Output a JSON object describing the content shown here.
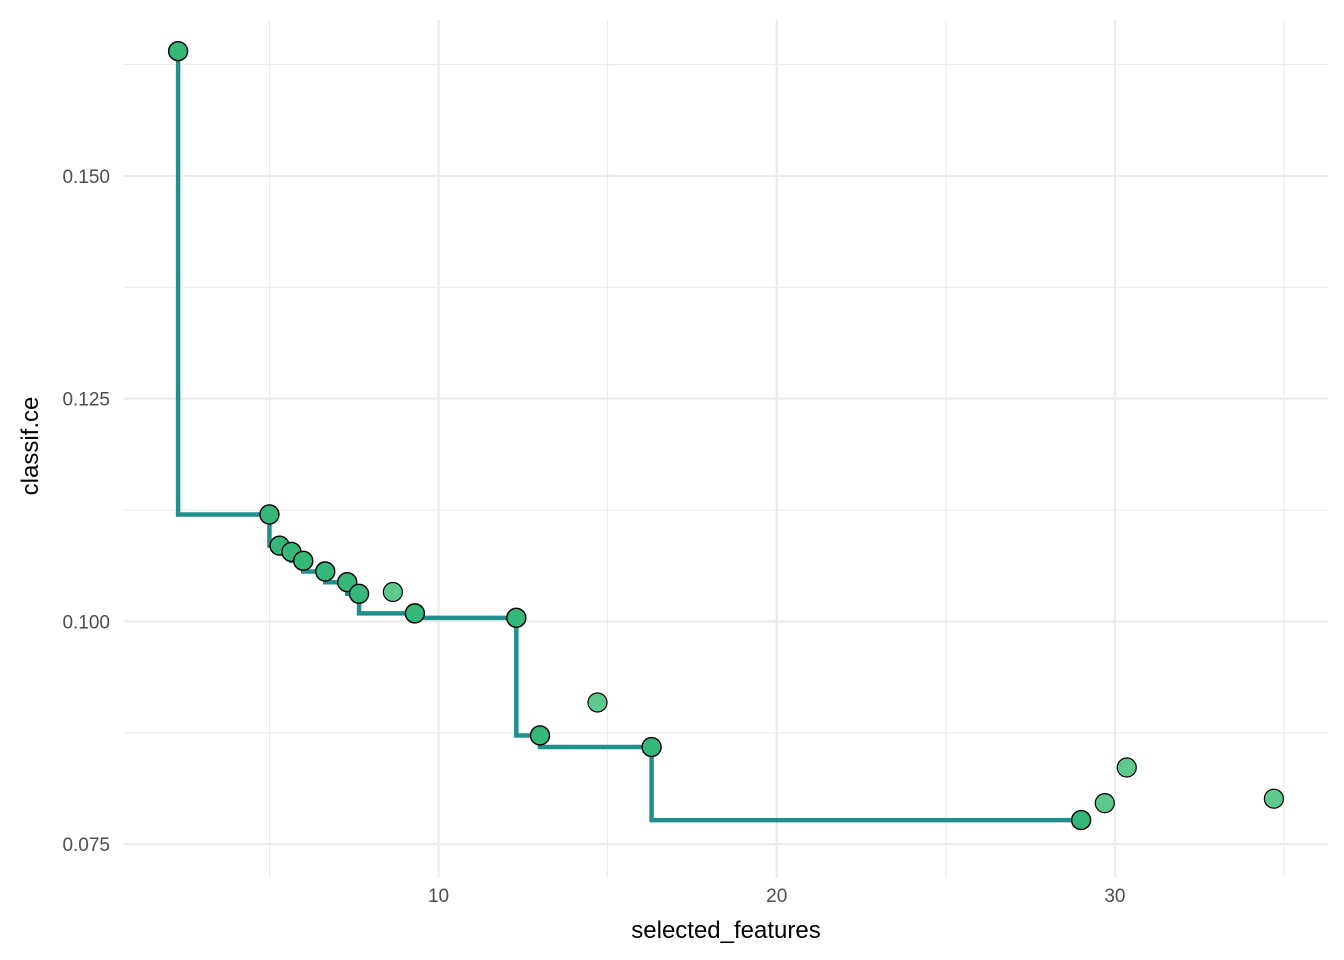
{
  "chart_data": {
    "type": "scatter",
    "xlabel": "selected_features",
    "ylabel": "classif.ce",
    "xlim": [
      0.7,
      36.3
    ],
    "ylim": [
      0.0712,
      0.1675
    ],
    "x_ticks": [
      10,
      20,
      30
    ],
    "x_minor_ticks": [
      5,
      15,
      25,
      35
    ],
    "y_ticks": [
      0.075,
      0.1,
      0.125,
      0.15
    ],
    "y_minor_ticks": [
      0.0875,
      0.1125,
      0.1375,
      0.1625
    ],
    "x_tick_labels": [
      "10",
      "20",
      "30"
    ],
    "y_tick_labels": [
      "0.075",
      "0.100",
      "0.125",
      "0.150"
    ],
    "grid": true,
    "legend": "none",
    "colors": {
      "pareto_line": "#21908C",
      "pareto_point": "#35B779",
      "other_point": "#5DC98D",
      "point_outline": "#000000",
      "grid": "#EBEBEB",
      "tick_text": "#4D4D4D"
    },
    "series": [
      {
        "role": "pareto-front",
        "points": [
          {
            "x": 2.3,
            "y": 0.164
          },
          {
            "x": 5.0,
            "y": 0.112
          },
          {
            "x": 5.3,
            "y": 0.1085
          },
          {
            "x": 5.65,
            "y": 0.1078
          },
          {
            "x": 6.0,
            "y": 0.1068
          },
          {
            "x": 6.65,
            "y": 0.1056
          },
          {
            "x": 7.3,
            "y": 0.1044
          },
          {
            "x": 7.65,
            "y": 0.1031
          },
          {
            "x": 9.3,
            "y": 0.1009
          },
          {
            "x": 12.3,
            "y": 0.1004
          },
          {
            "x": 13.0,
            "y": 0.0872
          },
          {
            "x": 16.3,
            "y": 0.0859
          },
          {
            "x": 29.0,
            "y": 0.0777
          }
        ]
      },
      {
        "role": "dominated",
        "points": [
          {
            "x": 8.65,
            "y": 0.1033
          },
          {
            "x": 14.7,
            "y": 0.0909
          },
          {
            "x": 29.7,
            "y": 0.0796
          },
          {
            "x": 30.35,
            "y": 0.0836
          },
          {
            "x": 34.7,
            "y": 0.0801
          }
        ]
      }
    ]
  }
}
